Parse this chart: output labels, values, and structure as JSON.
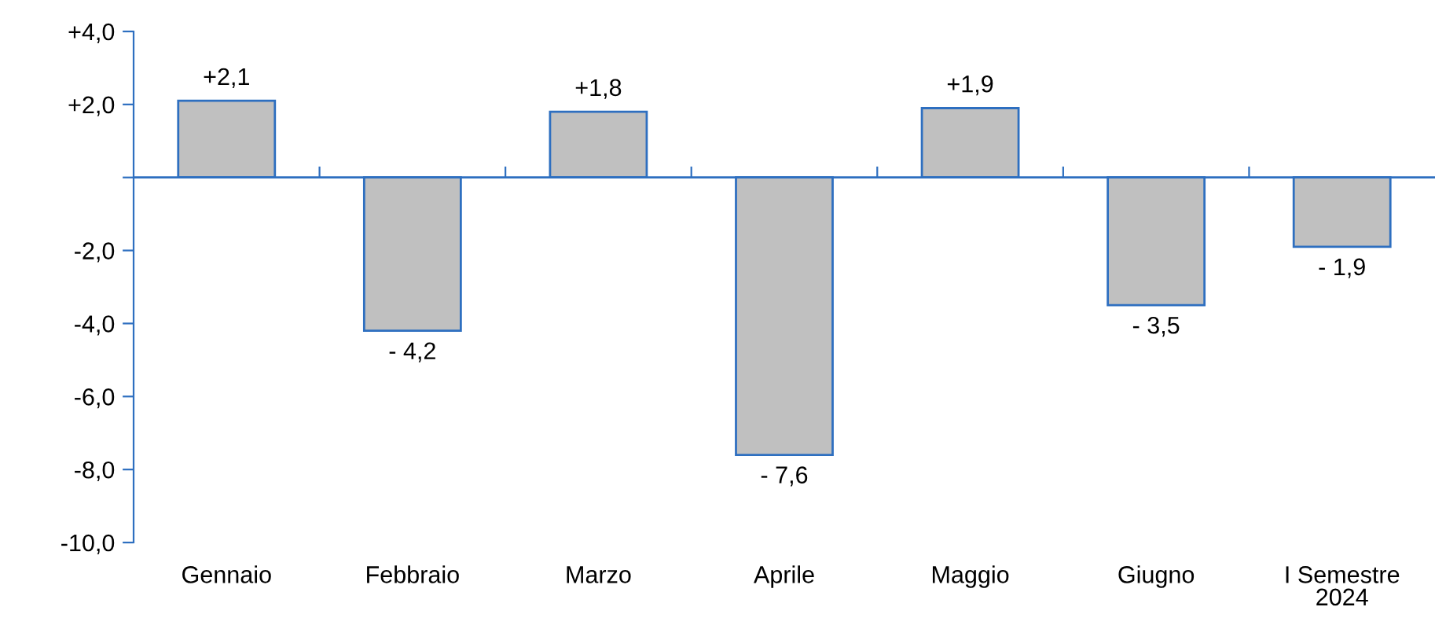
{
  "chart_data": {
    "type": "bar",
    "categories": [
      "Gennaio",
      "Febbraio",
      "Marzo",
      "Aprile",
      "Maggio",
      "Giugno",
      "I Semestre\n2024"
    ],
    "values": [
      2.1,
      -4.2,
      1.8,
      -7.6,
      1.9,
      -3.5,
      -1.9
    ],
    "value_labels": [
      "+2,1",
      "- 4,2",
      "+1,8",
      "- 7,6",
      "+1,9",
      "- 3,5",
      "- 1,9"
    ],
    "color": "#c0c0c0",
    "ylim": [
      -10,
      4
    ],
    "yticks": [
      {
        "value": 4,
        "label": "+4,0"
      },
      {
        "value": 2,
        "label": "+2,0"
      },
      {
        "value": 0,
        "label": null
      },
      {
        "value": -2,
        "label": "-2,0"
      },
      {
        "value": -4,
        "label": "-4,0"
      },
      {
        "value": -6,
        "label": "-6,0"
      },
      {
        "value": -8,
        "label": "-8,0"
      },
      {
        "value": -10,
        "label": "-10,0"
      }
    ],
    "ref_lines": [
      {
        "axis": "y",
        "value": 0,
        "label": null,
        "color": "#2e6fc0"
      }
    ],
    "grid": false,
    "legend": false
  }
}
